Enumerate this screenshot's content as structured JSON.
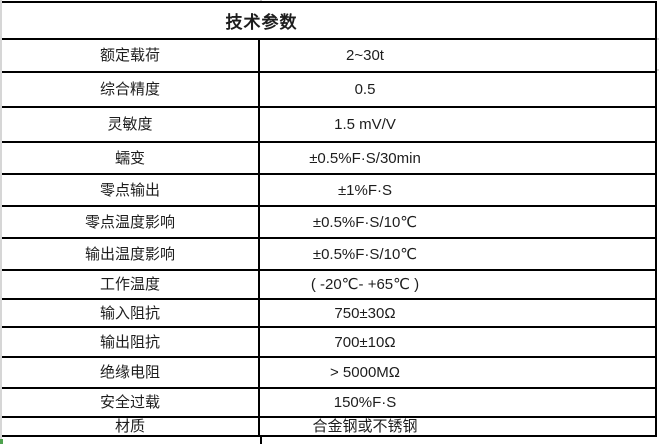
{
  "table": {
    "title": "技术参数",
    "rows": [
      {
        "label": "额定载荷",
        "value": "2~30t"
      },
      {
        "label": "综合精度",
        "value": "0.5"
      },
      {
        "label": "灵敏度",
        "value": "1.5 mV/V"
      },
      {
        "label": "蠕变",
        "value": "±0.5%F·S/30min"
      },
      {
        "label": "零点输出",
        "value": "±1%F·S"
      },
      {
        "label": "零点温度影响",
        "value": "±0.5%F·S/10℃"
      },
      {
        "label": "输出温度影响",
        "value": "±0.5%F·S/10℃"
      },
      {
        "label": "工作温度",
        "value": "( -20℃- +65℃ )"
      },
      {
        "label": "输入阻抗",
        "value": "750±30Ω"
      },
      {
        "label": "输出阻抗",
        "value": "700±10Ω"
      },
      {
        "label": "绝缘电阻",
        "value": "> 5000MΩ"
      },
      {
        "label": "安全过载",
        "value": "150%F·S"
      },
      {
        "label": "材质",
        "value": "合金钢或不锈钢"
      }
    ]
  },
  "colors": {
    "table_border": "#000000",
    "gridline": "#d6d6d6",
    "fill_handle_green": "#4ea24e",
    "text": "#1d1d1d",
    "background": "#ffffff"
  }
}
